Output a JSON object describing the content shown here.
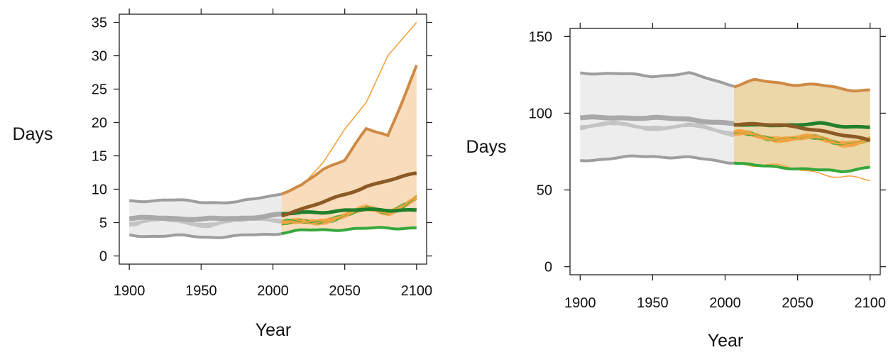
{
  "chart_data": [
    {
      "type": "line",
      "ylabel": "Days",
      "xlabel": "Year",
      "xlim": [
        1900,
        2100
      ],
      "ylim": [
        0,
        35
      ],
      "xticks": [
        1900,
        1950,
        2000,
        2050,
        2100
      ],
      "yticks": [
        0,
        5,
        10,
        15,
        20,
        25,
        30,
        35
      ],
      "split_year": 2006,
      "colors": {
        "historical": "#9e9e9e",
        "historical_band": "#ececec",
        "future_model": "#f5a341",
        "future_highlight": "#36a83b",
        "future_band": "#f8d6b0",
        "future_median": "#8c5a26",
        "future_envelope": "#cf8a45"
      },
      "historical": {
        "x": [
          1900,
          1925,
          1950,
          1975,
          2006
        ],
        "upper": [
          8.2,
          8.4,
          8.1,
          8.0,
          9.4
        ],
        "median": [
          5.6,
          5.7,
          5.5,
          5.6,
          6.2
        ],
        "lower": [
          3.1,
          3.0,
          2.9,
          2.9,
          3.5
        ]
      },
      "future": {
        "x": [
          2006,
          2020,
          2035,
          2050,
          2065,
          2080,
          2100
        ],
        "upper": [
          9.4,
          10.5,
          13.0,
          14.5,
          19.0,
          18.0,
          28.5
        ],
        "median": [
          6.2,
          7.0,
          8.0,
          9.2,
          10.5,
          11.3,
          12.3
        ],
        "lower": [
          3.5,
          3.8,
          3.9,
          4.0,
          4.1,
          4.2,
          4.2
        ],
        "highlight_model": [
          6.2,
          6.5,
          6.6,
          6.8,
          6.9,
          6.9,
          6.9
        ],
        "outlier_model": [
          9.4,
          10.5,
          14.0,
          19.0,
          23.0,
          30.0,
          35.0
        ]
      }
    },
    {
      "type": "line",
      "ylabel": "Days",
      "xlabel": "Year",
      "xlim": [
        1900,
        2100
      ],
      "ylim": [
        0,
        150
      ],
      "xticks": [
        1900,
        1950,
        2000,
        2050,
        2100
      ],
      "yticks": [
        0,
        50,
        100,
        150
      ],
      "split_year": 2006,
      "colors": {
        "historical": "#9e9e9e",
        "historical_band": "#ededed",
        "future_model": "#f5a341",
        "future_highlight": "#36a83b",
        "future_band": "#e9d09a",
        "future_median": "#8c5a26",
        "future_envelope": "#cf8a45"
      },
      "historical": {
        "x": [
          1900,
          1925,
          1950,
          1975,
          2006
        ],
        "upper": [
          126,
          126,
          124,
          126,
          118
        ],
        "median": [
          97,
          97,
          97,
          96,
          93
        ],
        "lower": [
          69,
          71,
          72,
          71,
          68
        ]
      },
      "future": {
        "x": [
          2006,
          2020,
          2035,
          2050,
          2065,
          2080,
          2100
        ],
        "upper": [
          118,
          121,
          120,
          119,
          118,
          116,
          115
        ],
        "median": [
          93,
          93,
          92,
          91,
          89,
          86,
          82
        ],
        "lower": [
          68,
          66,
          65,
          64,
          63,
          62,
          65
        ],
        "highlight_model": [
          92,
          92,
          93,
          92,
          93,
          92,
          91
        ],
        "low_model": [
          68,
          66,
          65,
          64,
          62,
          58,
          56
        ]
      }
    }
  ]
}
